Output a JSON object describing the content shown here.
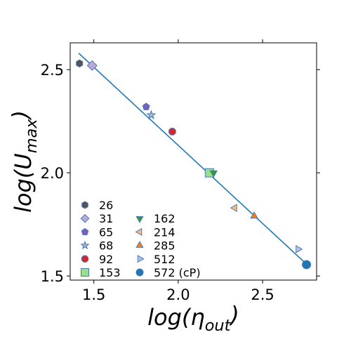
{
  "chart_data": {
    "type": "scatter",
    "xlabel": "log(η_out)",
    "ylabel": "log(U_max)",
    "xlim": [
      1.36,
      2.82
    ],
    "ylim": [
      1.48,
      2.63
    ],
    "xticks": [
      1.5,
      2.0,
      2.5
    ],
    "xtick_labels": [
      "1.5",
      "2.0",
      "2.5"
    ],
    "yticks": [
      1.5,
      2.0,
      2.5
    ],
    "ytick_labels": [
      "1.5",
      "2.0",
      "2.5"
    ],
    "grid": false,
    "legend_placement": "lower-left",
    "fit_line": {
      "x": [
        1.41,
        2.77
      ],
      "y": [
        2.58,
        1.55
      ],
      "color": "#1f77b4"
    },
    "series": [
      {
        "name": "26",
        "x": 1.415,
        "y": 2.53,
        "marker": "hexagon",
        "color": "#555555"
      },
      {
        "name": "31",
        "x": 1.49,
        "y": 2.52,
        "marker": "diamond",
        "color": "#b8a9d9"
      },
      {
        "name": "65",
        "x": 1.81,
        "y": 2.32,
        "marker": "pentagon",
        "color": "#7a5fc0"
      },
      {
        "name": "68",
        "x": 1.84,
        "y": 2.28,
        "marker": "star",
        "color": "#a8b4c6"
      },
      {
        "name": "92",
        "x": 1.965,
        "y": 2.2,
        "marker": "octagon",
        "color": "#d62728"
      },
      {
        "name": "153",
        "x": 2.185,
        "y": 2.0,
        "marker": "square",
        "color": "#98df8a"
      },
      {
        "name": "162",
        "x": 2.21,
        "y": 2.0,
        "marker": "triangle-down",
        "color": "#2ca02c"
      },
      {
        "name": "214",
        "x": 2.335,
        "y": 1.83,
        "marker": "triangle-left",
        "color": "#ffbb78"
      },
      {
        "name": "285",
        "x": 2.45,
        "y": 1.79,
        "marker": "triangle-up",
        "color": "#ff7f0e"
      },
      {
        "name": "512",
        "x": 2.71,
        "y": 1.63,
        "marker": "triangle-right",
        "color": "#aec7e8"
      },
      {
        "name": "572 (cP)",
        "x": 2.76,
        "y": 1.555,
        "marker": "circle",
        "color": "#1f77b4"
      }
    ],
    "edge_color": "#4a78b8"
  }
}
